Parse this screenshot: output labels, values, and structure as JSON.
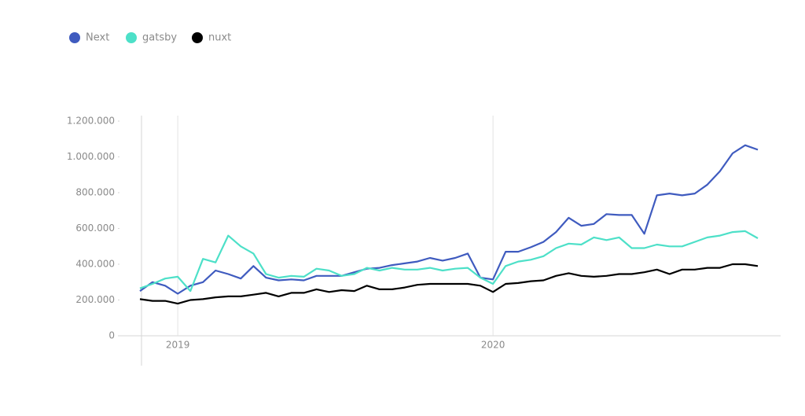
{
  "chart_data": {
    "type": "line",
    "categories": [
      null,
      null,
      null,
      "2019",
      null,
      null,
      null,
      null,
      null,
      null,
      null,
      null,
      null,
      null,
      null,
      null,
      null,
      null,
      null,
      null,
      null,
      null,
      null,
      null,
      null,
      null,
      null,
      null,
      "2020",
      null,
      null,
      null,
      null,
      null,
      null,
      null,
      null,
      null,
      null,
      null,
      null,
      null,
      null,
      null,
      null,
      null,
      null,
      null,
      null,
      null
    ],
    "series": [
      {
        "name": "Next",
        "color": "#3f5bbf",
        "values": [
          250000,
          300000,
          280000,
          235000,
          280000,
          300000,
          365000,
          345000,
          320000,
          390000,
          325000,
          310000,
          315000,
          310000,
          335000,
          335000,
          335000,
          355000,
          375000,
          380000,
          395000,
          405000,
          415000,
          435000,
          420000,
          435000,
          460000,
          325000,
          315000,
          470000,
          470000,
          495000,
          525000,
          580000,
          660000,
          615000,
          625000,
          680000,
          675000,
          675000,
          570000,
          785000,
          795000,
          785000,
          795000,
          845000,
          920000,
          1020000,
          1065000,
          1040000
        ]
      },
      {
        "name": "gatsby",
        "color": "#4de0c8",
        "values": [
          265000,
          290000,
          320000,
          330000,
          250000,
          430000,
          410000,
          560000,
          500000,
          460000,
          345000,
          325000,
          335000,
          330000,
          375000,
          365000,
          335000,
          345000,
          380000,
          365000,
          380000,
          370000,
          370000,
          380000,
          365000,
          375000,
          380000,
          325000,
          290000,
          390000,
          415000,
          425000,
          445000,
          490000,
          515000,
          510000,
          550000,
          535000,
          550000,
          490000,
          490000,
          510000,
          500000,
          500000,
          525000,
          550000,
          560000,
          580000,
          585000,
          545000
        ]
      },
      {
        "name": "nuxt",
        "color": "#000000",
        "values": [
          205000,
          195000,
          195000,
          180000,
          200000,
          205000,
          215000,
          220000,
          220000,
          230000,
          240000,
          220000,
          240000,
          240000,
          260000,
          245000,
          255000,
          250000,
          280000,
          260000,
          260000,
          270000,
          285000,
          290000,
          290000,
          290000,
          290000,
          280000,
          245000,
          290000,
          295000,
          305000,
          310000,
          335000,
          350000,
          335000,
          330000,
          335000,
          345000,
          345000,
          355000,
          370000,
          345000,
          370000,
          370000,
          380000,
          380000,
          400000,
          400000,
          390000
        ]
      }
    ],
    "ylim": [
      0,
      1200000
    ],
    "yticks": [
      0,
      {
        "value": 200000,
        "label": "200.000"
      },
      {
        "value": 400000,
        "label": "400.000"
      },
      {
        "value": 600000,
        "label": "600.000"
      },
      {
        "value": 800000,
        "label": "800.000"
      },
      {
        "value": 1000000,
        "label": "1.000.000"
      },
      {
        "value": 1200000,
        "label": "1.200.000"
      }
    ]
  }
}
